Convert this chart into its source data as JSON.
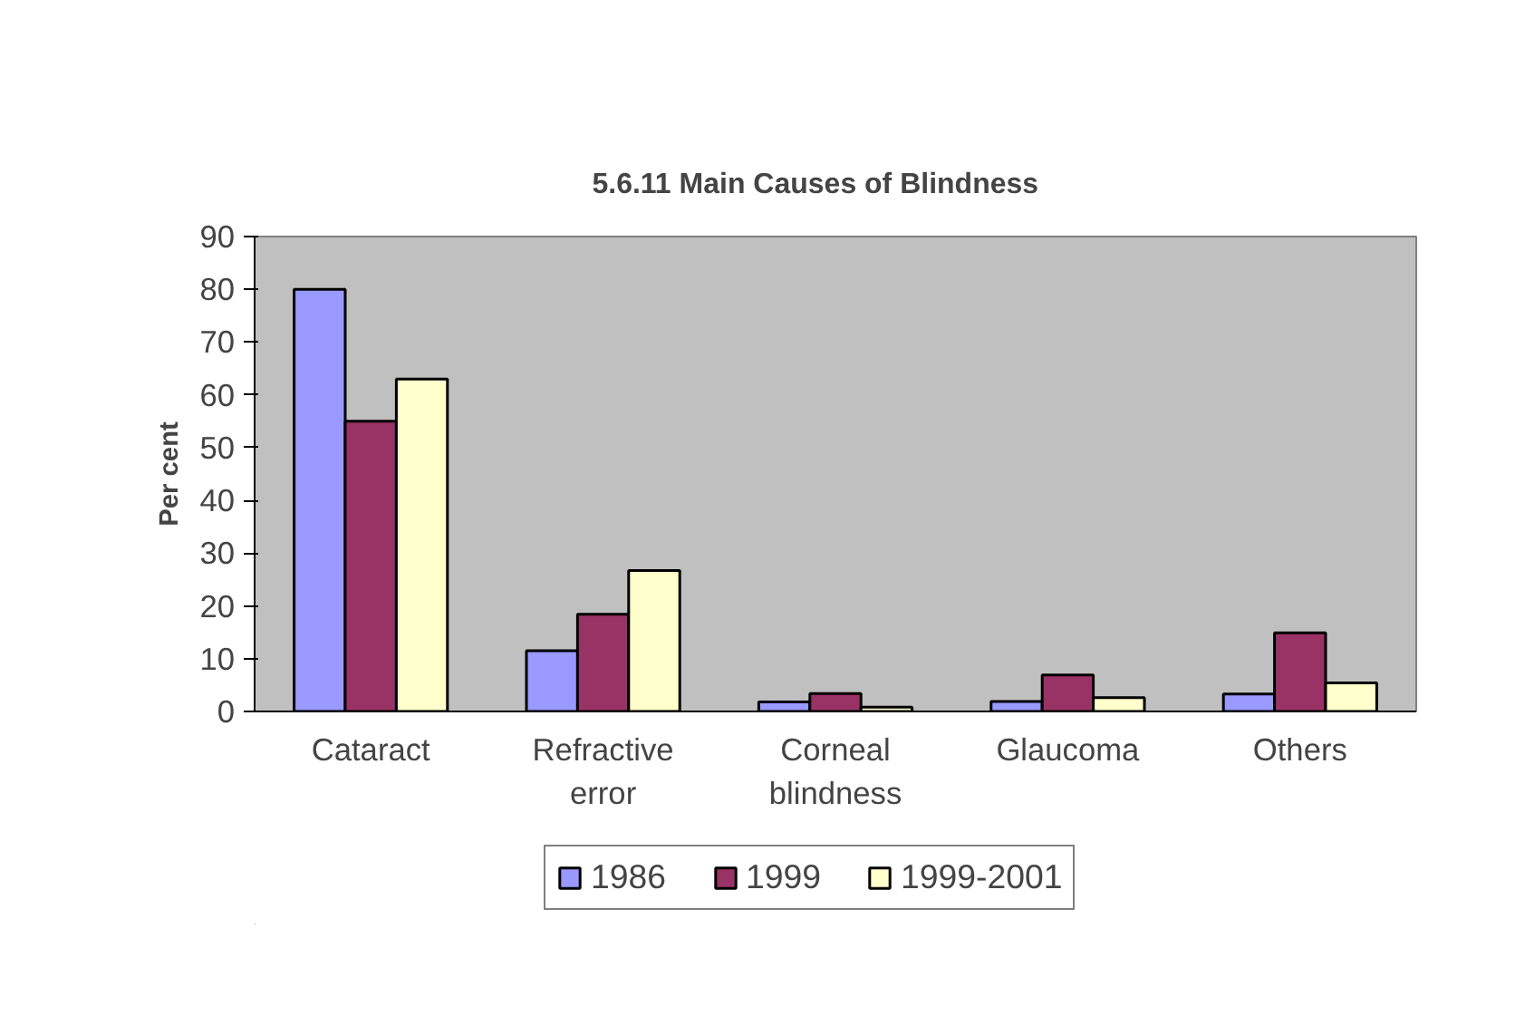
{
  "chart_data": {
    "type": "bar",
    "title": "5.6.11      Main Causes of Blindness",
    "ylabel": "Per cent",
    "categories": [
      "Cataract",
      "Refractive error",
      "Corneal blindness",
      "Glaucoma",
      "Others"
    ],
    "series": [
      {
        "name": "1986",
        "color": "#9999ff",
        "values": [
          80,
          11.5,
          1.8,
          1.9,
          3.3
        ]
      },
      {
        "name": "1999",
        "color": "#993366",
        "values": [
          55,
          18.4,
          3.4,
          6.9,
          14.9
        ]
      },
      {
        "name": "1999-2001",
        "color": "#ffffcc",
        "values": [
          63,
          26.7,
          0.8,
          2.6,
          5.4
        ]
      }
    ],
    "ylim": [
      0,
      90
    ],
    "yticks": [
      0,
      10,
      20,
      30,
      40,
      50,
      60,
      70,
      80,
      90
    ],
    "grid": false,
    "legend": "bottom"
  }
}
